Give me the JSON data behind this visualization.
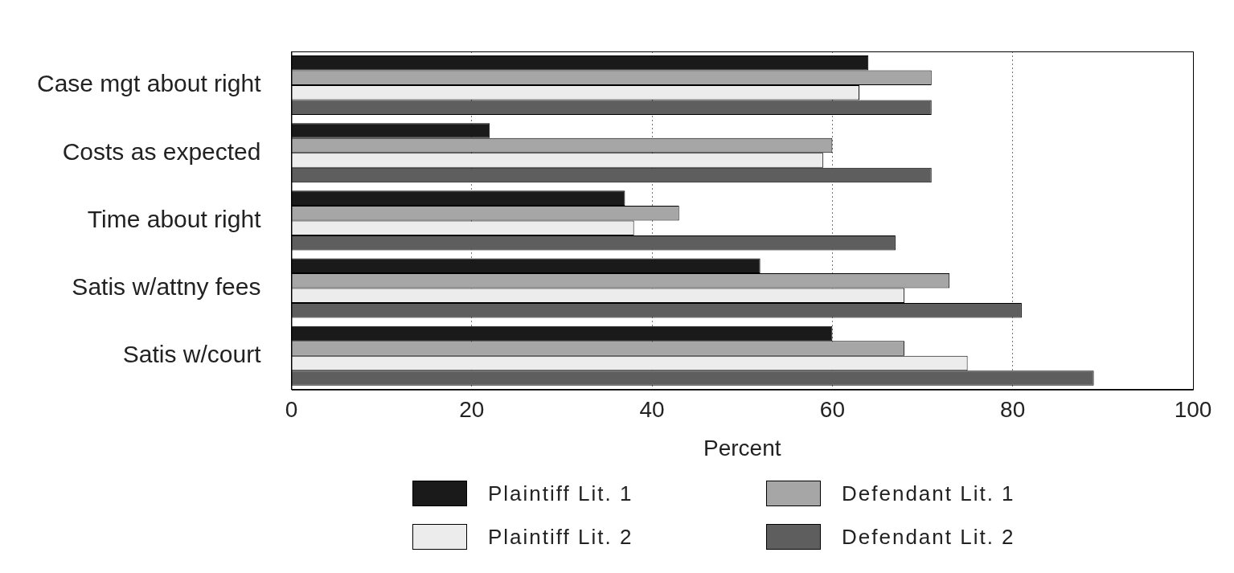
{
  "chart_data": {
    "type": "bar",
    "orientation": "horizontal",
    "xlabel": "Percent",
    "categories": [
      "Case mgt about right",
      "Costs as expected",
      "Time about right",
      "Satis w/attny fees",
      "Satis w/court"
    ],
    "series": [
      {
        "name": "Plaintiff Lit. 1",
        "color": "#1a1a1a",
        "values": [
          64,
          22,
          37,
          52,
          60
        ]
      },
      {
        "name": "Defendant Lit. 1",
        "color": "#a6a6a6",
        "values": [
          71,
          60,
          43,
          73,
          68
        ]
      },
      {
        "name": "Plaintiff Lit. 2",
        "color": "#ececec",
        "values": [
          63,
          59,
          38,
          68,
          75
        ]
      },
      {
        "name": "Defendant Lit. 2",
        "color": "#5e5e5e",
        "values": [
          71,
          71,
          67,
          81,
          89
        ]
      }
    ],
    "xlim": [
      0,
      100
    ],
    "xticks": [
      0,
      20,
      40,
      60,
      80,
      100
    ],
    "grid": "x",
    "legend": "bottom"
  }
}
